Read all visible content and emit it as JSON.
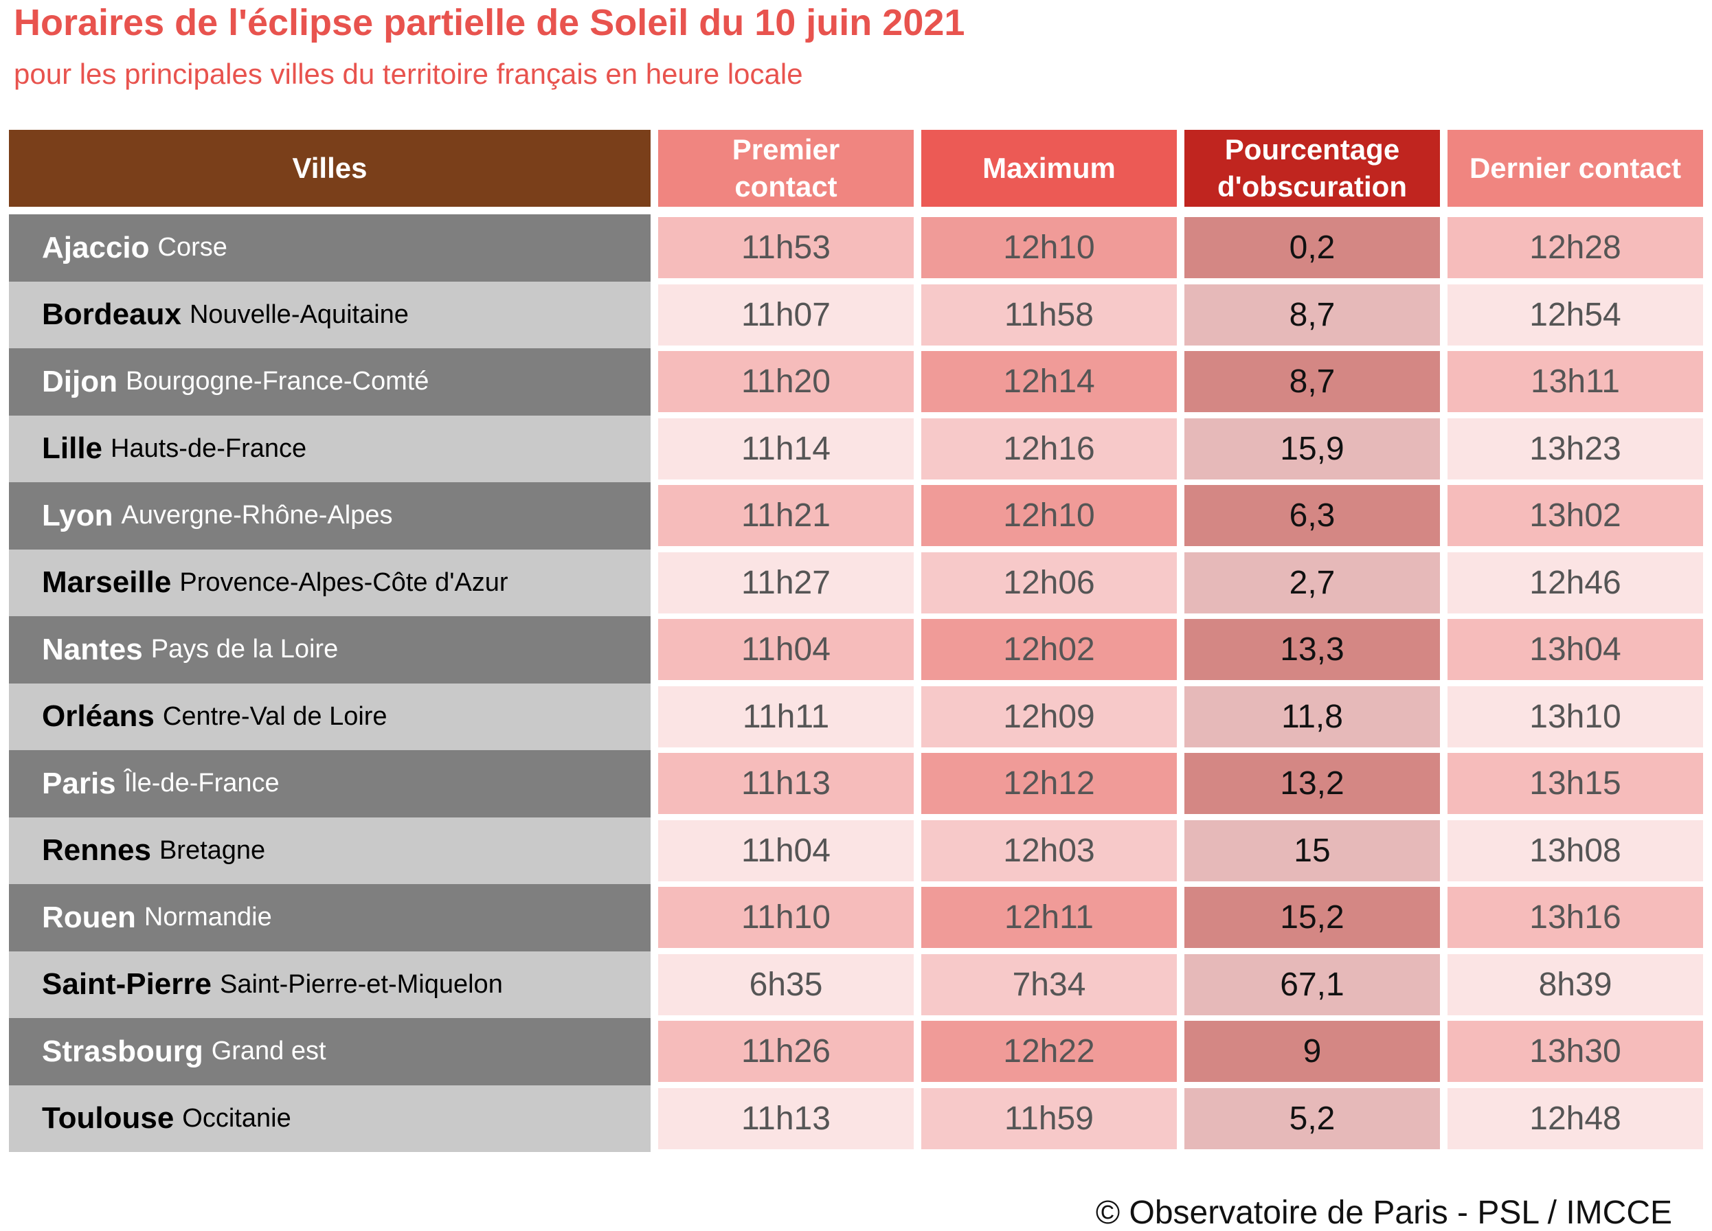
{
  "title": "Horaires de l'éclipse partielle de Soleil du 10 juin 2021",
  "subtitle": "pour les principales villes du territoire français en heure locale",
  "headers": [
    "Villes",
    "Premier contact",
    "Maximum",
    "Pourcentage d'obscuration",
    "Dernier contact"
  ],
  "header_colors": [
    "#7a3f1a",
    "#f08580",
    "#ec5a55",
    "#c0251f",
    "#f08580"
  ],
  "rows": [
    {
      "city": "Ajaccio",
      "region": "Corse",
      "values": [
        "11h53",
        "12h10",
        "0,2",
        "12h28"
      ]
    },
    {
      "city": "Bordeaux",
      "region": "Nouvelle-Aquitaine",
      "values": [
        "11h07",
        "11h58",
        "8,7",
        "12h54"
      ]
    },
    {
      "city": "Dijon",
      "region": "Bourgogne-France-Comté",
      "values": [
        "11h20",
        "12h14",
        "8,7",
        "13h11"
      ]
    },
    {
      "city": "Lille",
      "region": "Hauts-de-France",
      "values": [
        "11h14",
        "12h16",
        "15,9",
        "13h23"
      ]
    },
    {
      "city": "Lyon",
      "region": "Auvergne-Rhône-Alpes",
      "values": [
        "11h21",
        "12h10",
        "6,3",
        "13h02"
      ]
    },
    {
      "city": "Marseille",
      "region": "Provence-Alpes-Côte d'Azur",
      "values": [
        "11h27",
        "12h06",
        "2,7",
        "12h46"
      ]
    },
    {
      "city": "Nantes",
      "region": "Pays de la Loire",
      "values": [
        "11h04",
        "12h02",
        "13,3",
        "13h04"
      ]
    },
    {
      "city": "Orléans",
      "region": "Centre-Val de Loire",
      "values": [
        "11h11",
        "12h09",
        "11,8",
        "13h10"
      ]
    },
    {
      "city": "Paris",
      "region": "Île-de-France",
      "values": [
        "11h13",
        "12h12",
        "13,2",
        "13h15"
      ]
    },
    {
      "city": "Rennes",
      "region": "Bretagne",
      "values": [
        "11h04",
        "12h03",
        "15",
        "13h08"
      ]
    },
    {
      "city": "Rouen",
      "region": "Normandie",
      "values": [
        "11h10",
        "12h11",
        "15,2",
        "13h16"
      ]
    },
    {
      "city": "Saint-Pierre",
      "region": "Saint-Pierre-et-Miquelon",
      "values": [
        "6h35",
        "7h34",
        "67,1",
        "8h39"
      ]
    },
    {
      "city": "Strasbourg",
      "region": "Grand est",
      "values": [
        "11h26",
        "12h22",
        "9",
        "13h30"
      ]
    },
    {
      "city": "Toulouse",
      "region": "Occitanie",
      "values": [
        "11h13",
        "11h59",
        "5,2",
        "12h48"
      ]
    }
  ],
  "footer": "© Observatoire de Paris - PSL / IMCCE"
}
